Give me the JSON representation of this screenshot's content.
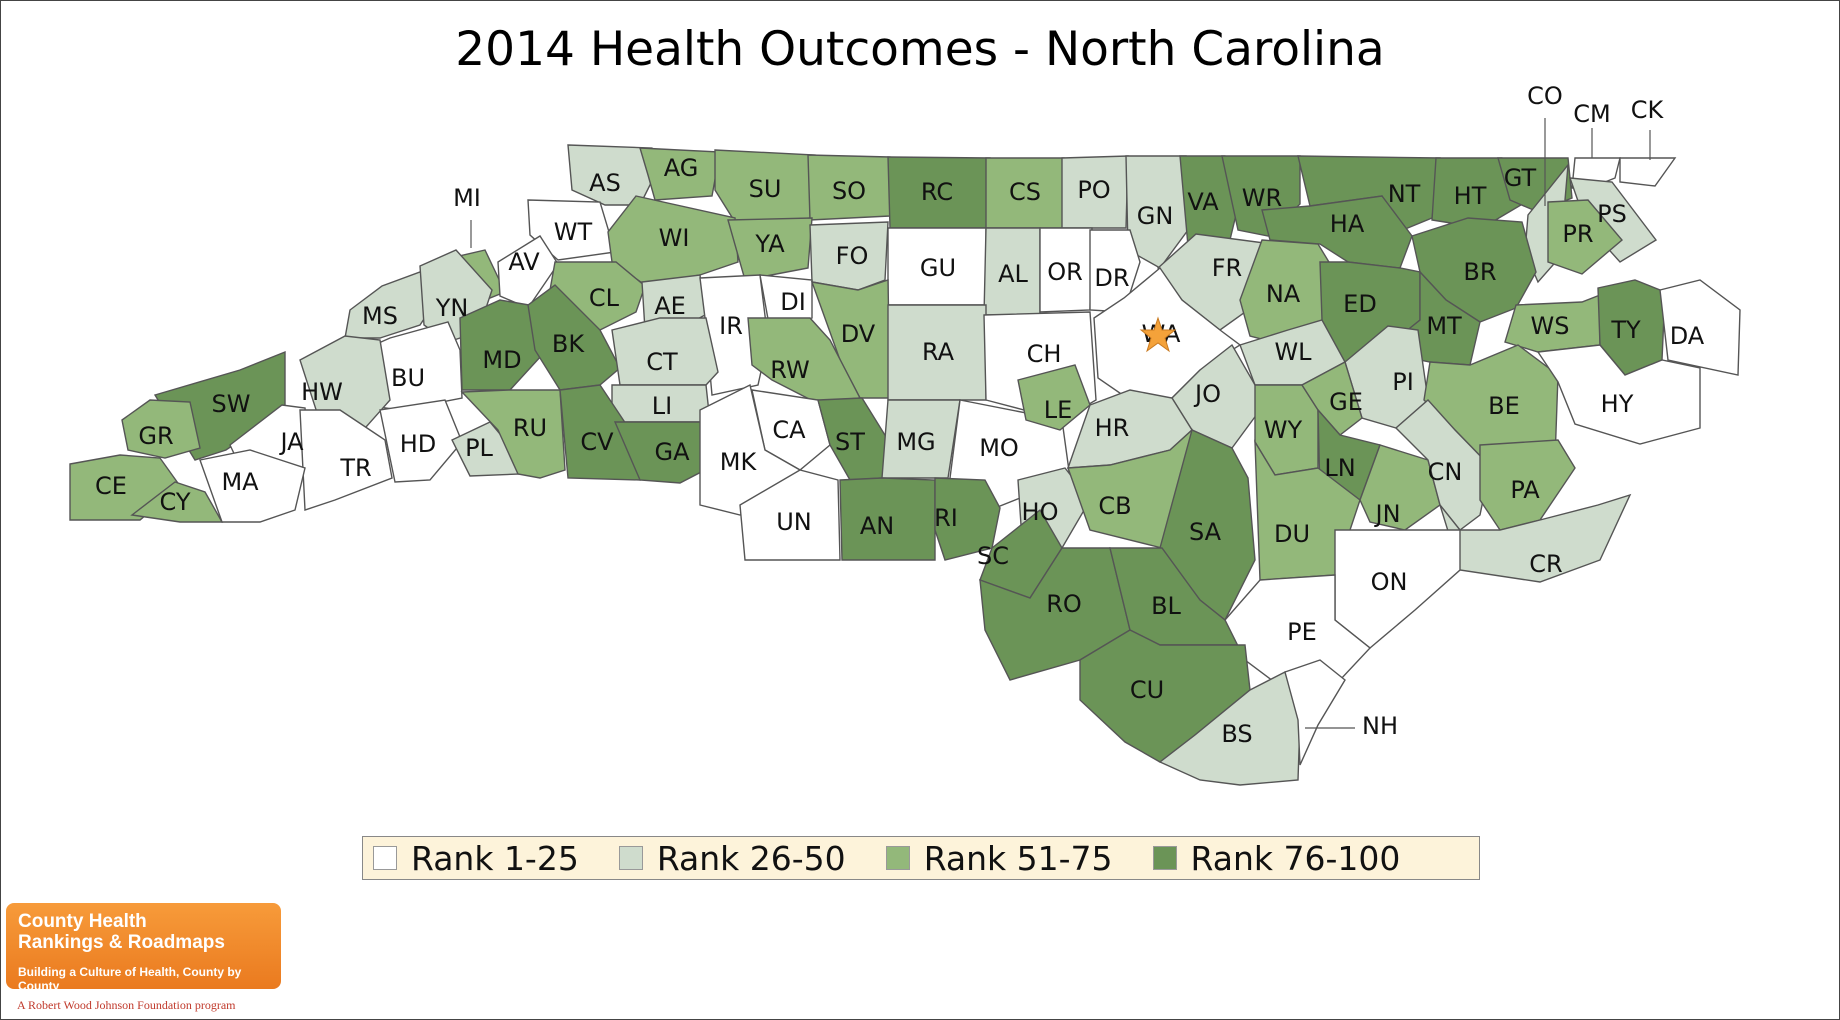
{
  "title": "2014 Health Outcomes - North Carolina",
  "rank_colors": {
    "1": "#ffffff",
    "2": "#cfdccd",
    "3": "#93b87a",
    "4": "#6b9457"
  },
  "legend": [
    {
      "label": "Rank 1-25",
      "color": "#ffffff"
    },
    {
      "label": "Rank 26-50",
      "color": "#cfdccd"
    },
    {
      "label": "Rank 51-75",
      "color": "#93b87a"
    },
    {
      "label": "Rank 76-100",
      "color": "#6b9457"
    }
  ],
  "counties": [
    {
      "abbr": "AS",
      "tier": 2
    },
    {
      "abbr": "AG",
      "tier": 3
    },
    {
      "abbr": "SU",
      "tier": 3
    },
    {
      "abbr": "SO",
      "tier": 3
    },
    {
      "abbr": "RC",
      "tier": 4
    },
    {
      "abbr": "CS",
      "tier": 3
    },
    {
      "abbr": "PO",
      "tier": 2
    },
    {
      "abbr": "GN",
      "tier": 2
    },
    {
      "abbr": "VA",
      "tier": 4
    },
    {
      "abbr": "WR",
      "tier": 4
    },
    {
      "abbr": "NT",
      "tier": 4
    },
    {
      "abbr": "HT",
      "tier": 4
    },
    {
      "abbr": "GT",
      "tier": 4
    },
    {
      "abbr": "CO",
      "tier": 2
    },
    {
      "abbr": "CM",
      "tier": 1
    },
    {
      "abbr": "CK",
      "tier": 1
    },
    {
      "abbr": "PS",
      "tier": 2
    },
    {
      "abbr": "PR",
      "tier": 3
    },
    {
      "abbr": "MI",
      "tier": 3
    },
    {
      "abbr": "WT",
      "tier": 1
    },
    {
      "abbr": "AV",
      "tier": 1
    },
    {
      "abbr": "WI",
      "tier": 3
    },
    {
      "abbr": "YA",
      "tier": 3
    },
    {
      "abbr": "FO",
      "tier": 2
    },
    {
      "abbr": "GU",
      "tier": 1
    },
    {
      "abbr": "AL",
      "tier": 2
    },
    {
      "abbr": "OR",
      "tier": 1
    },
    {
      "abbr": "DR",
      "tier": 1
    },
    {
      "abbr": "FR",
      "tier": 2
    },
    {
      "abbr": "HA",
      "tier": 4
    },
    {
      "abbr": "BR",
      "tier": 4
    },
    {
      "abbr": "MS",
      "tier": 2
    },
    {
      "abbr": "YN",
      "tier": 2
    },
    {
      "abbr": "CL",
      "tier": 3
    },
    {
      "abbr": "AE",
      "tier": 2
    },
    {
      "abbr": "IR",
      "tier": 1
    },
    {
      "abbr": "DI",
      "tier": 1
    },
    {
      "abbr": "DV",
      "tier": 3
    },
    {
      "abbr": "RA",
      "tier": 2
    },
    {
      "abbr": "CH",
      "tier": 1
    },
    {
      "abbr": "WA",
      "tier": 1
    },
    {
      "abbr": "NA",
      "tier": 3
    },
    {
      "abbr": "ED",
      "tier": 4
    },
    {
      "abbr": "MT",
      "tier": 4
    },
    {
      "abbr": "WS",
      "tier": 3
    },
    {
      "abbr": "TY",
      "tier": 4
    },
    {
      "abbr": "DA",
      "tier": 1
    },
    {
      "abbr": "MD",
      "tier": 4
    },
    {
      "abbr": "BK",
      "tier": 4
    },
    {
      "abbr": "CT",
      "tier": 2
    },
    {
      "abbr": "RW",
      "tier": 3
    },
    {
      "abbr": "BU",
      "tier": 1
    },
    {
      "abbr": "HW",
      "tier": 2
    },
    {
      "abbr": "SW",
      "tier": 4
    },
    {
      "abbr": "WL",
      "tier": 2
    },
    {
      "abbr": "PI",
      "tier": 2
    },
    {
      "abbr": "JO",
      "tier": 2
    },
    {
      "abbr": "BE",
      "tier": 3
    },
    {
      "abbr": "HY",
      "tier": 1
    },
    {
      "abbr": "LI",
      "tier": 2
    },
    {
      "abbr": "GR",
      "tier": 3
    },
    {
      "abbr": "JA",
      "tier": 1
    },
    {
      "abbr": "TR",
      "tier": 1
    },
    {
      "abbr": "HD",
      "tier": 1
    },
    {
      "abbr": "PL",
      "tier": 2
    },
    {
      "abbr": "RU",
      "tier": 3
    },
    {
      "abbr": "CV",
      "tier": 4
    },
    {
      "abbr": "GA",
      "tier": 4
    },
    {
      "abbr": "CA",
      "tier": 1
    },
    {
      "abbr": "ST",
      "tier": 4
    },
    {
      "abbr": "MG",
      "tier": 2
    },
    {
      "abbr": "MO",
      "tier": 1
    },
    {
      "abbr": "LE",
      "tier": 3
    },
    {
      "abbr": "HR",
      "tier": 2
    },
    {
      "abbr": "WY",
      "tier": 3
    },
    {
      "abbr": "GE",
      "tier": 3
    },
    {
      "abbr": "LN",
      "tier": 4
    },
    {
      "abbr": "CE",
      "tier": 3
    },
    {
      "abbr": "CY",
      "tier": 3
    },
    {
      "abbr": "MA",
      "tier": 1
    },
    {
      "abbr": "MK",
      "tier": 1
    },
    {
      "abbr": "UN",
      "tier": 1
    },
    {
      "abbr": "AN",
      "tier": 4
    },
    {
      "abbr": "RI",
      "tier": 4
    },
    {
      "abbr": "HO",
      "tier": 2
    },
    {
      "abbr": "CB",
      "tier": 3
    },
    {
      "abbr": "SA",
      "tier": 4
    },
    {
      "abbr": "DU",
      "tier": 3
    },
    {
      "abbr": "JN",
      "tier": 3
    },
    {
      "abbr": "CN",
      "tier": 2
    },
    {
      "abbr": "PA",
      "tier": 3
    },
    {
      "abbr": "SC",
      "tier": 4
    },
    {
      "abbr": "CR",
      "tier": 2
    },
    {
      "abbr": "ON",
      "tier": 1
    },
    {
      "abbr": "RO",
      "tier": 4
    },
    {
      "abbr": "BL",
      "tier": 4
    },
    {
      "abbr": "PE",
      "tier": 1
    },
    {
      "abbr": "CU",
      "tier": 4
    },
    {
      "abbr": "BS",
      "tier": 2
    },
    {
      "abbr": "NH",
      "tier": 1
    }
  ],
  "logo": {
    "line1": "County Health",
    "line2": "Rankings & Roadmaps",
    "line3": "Building a Culture of Health, County by County",
    "footer": "A Robert Wood Johnson Foundation program"
  }
}
